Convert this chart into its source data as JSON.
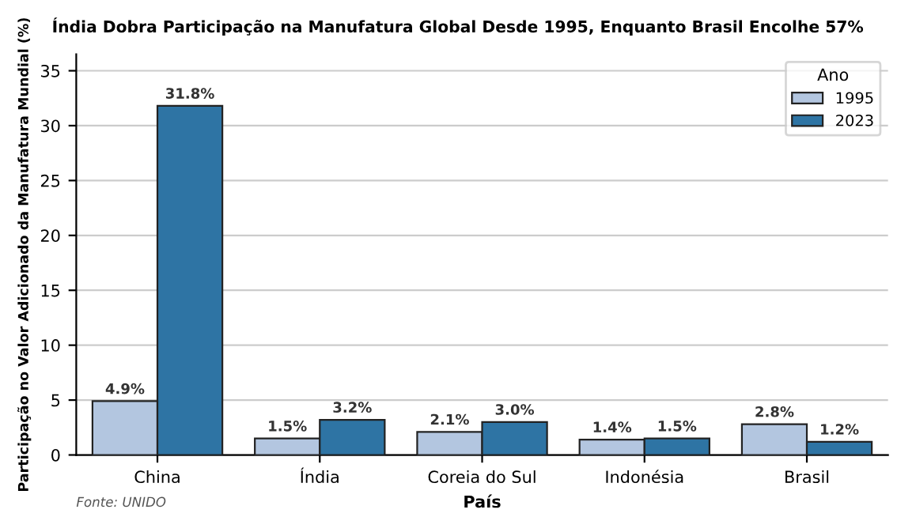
{
  "chart_data": {
    "type": "bar",
    "title": "Índia Dobra Participação na Manufatura Global Desde 1995, Enquanto Brasil Encolhe 57%",
    "xlabel": "País",
    "ylabel": "Participação no Valor Adicionado da Manufatura Mundial (%)",
    "legend_title": "Ano",
    "categories": [
      "China",
      "Índia",
      "Coreia do Sul",
      "Indonésia",
      "Brasil"
    ],
    "series": [
      {
        "name": "1995",
        "color": "#b3c6e0",
        "values": [
          4.9,
          1.5,
          2.1,
          1.4,
          2.8
        ],
        "value_labels": [
          "4.9%",
          "1.5%",
          "2.1%",
          "1.4%",
          "2.8%"
        ]
      },
      {
        "name": "2023",
        "color": "#2e74a4",
        "values": [
          31.8,
          3.2,
          3.0,
          1.5,
          1.2
        ],
        "value_labels": [
          "31.8%",
          "3.2%",
          "3.0%",
          "1.5%",
          "1.2%"
        ]
      }
    ],
    "ylim": [
      0,
      36.5
    ],
    "yticks": [
      0,
      5,
      10,
      15,
      20,
      25,
      30,
      35
    ],
    "grid": "y",
    "legend": "top right",
    "annotations": [
      "Fonte: UNIDO"
    ]
  }
}
